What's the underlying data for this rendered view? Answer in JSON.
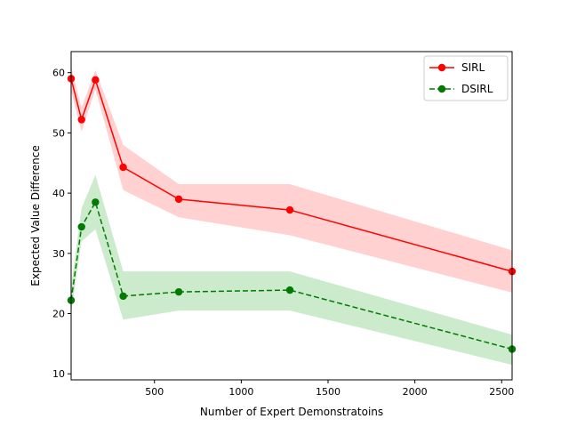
{
  "chart_data": {
    "type": "line",
    "title": "",
    "xlabel": "Number of Expert Demonstratoins",
    "ylabel": "Expected Value Difference",
    "xlim": [
      20,
      2560
    ],
    "ylim": [
      9,
      63.5
    ],
    "xticks": [
      500,
      1000,
      1500,
      2000,
      2500
    ],
    "yticks": [
      10,
      20,
      30,
      40,
      50,
      60
    ],
    "x": [
      20,
      80,
      160,
      320,
      640,
      1280,
      2560
    ],
    "grid": false,
    "legend_position": "top-right",
    "series": [
      {
        "name": "SIRL",
        "color": "#ff0000",
        "band_color": "#ff9999",
        "line_style": "solid",
        "marker": "circle",
        "values": [
          59.0,
          52.2,
          58.8,
          44.3,
          39.0,
          37.2,
          27.0
        ],
        "band_lower": [
          57.0,
          50.2,
          57.2,
          40.5,
          36.0,
          33.0,
          23.5
        ],
        "band_upper": [
          61.0,
          54.2,
          60.4,
          48.0,
          41.5,
          41.5,
          30.5
        ]
      },
      {
        "name": "DSIRL",
        "color": "#007a00",
        "band_color": "#8fd18f",
        "line_style": "dashed",
        "marker": "circle",
        "values": [
          22.2,
          34.4,
          38.5,
          22.9,
          23.6,
          23.9,
          14.1
        ],
        "band_lower": [
          20.0,
          32.0,
          34.0,
          19.0,
          20.5,
          20.5,
          11.5
        ],
        "band_upper": [
          24.5,
          37.5,
          43.0,
          27.0,
          27.0,
          27.0,
          16.5
        ]
      }
    ]
  }
}
